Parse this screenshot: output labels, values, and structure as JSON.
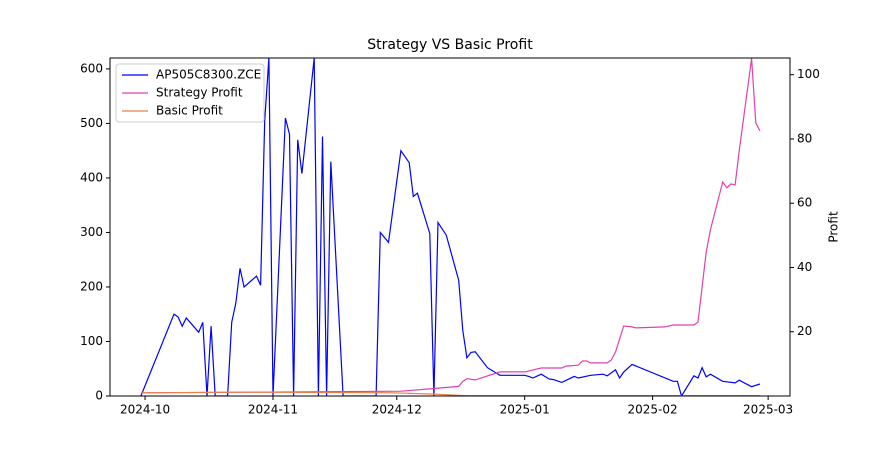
{
  "chart_data": {
    "type": "line",
    "title": "Strategy VS Basic Profit",
    "y2label": "Profit",
    "xlim": [
      -8.5,
      156.3
    ],
    "xticks": [
      {
        "value": 0,
        "label": "2024-10"
      },
      {
        "value": 31,
        "label": "2024-11"
      },
      {
        "value": 61,
        "label": "2024-12"
      },
      {
        "value": 92,
        "label": "2025-01"
      },
      {
        "value": 123,
        "label": "2025-02"
      },
      {
        "value": 151,
        "label": "2025-03"
      }
    ],
    "ylim": [
      0,
      620
    ],
    "yticks": [
      0,
      100,
      200,
      300,
      400,
      500,
      600
    ],
    "y2lim": [
      0,
      105.2
    ],
    "y2ticks": [
      20,
      40,
      60,
      80,
      100
    ],
    "legend": "upper left",
    "series": [
      {
        "name": "AP505C8300.ZCE",
        "color": "#0000ff",
        "axis": "y",
        "x": [
          -1,
          7,
          8,
          9,
          10,
          13,
          14,
          15,
          16,
          17,
          20,
          21,
          22,
          23,
          24,
          27,
          28,
          29,
          30,
          31,
          34,
          35,
          36,
          37,
          38,
          41,
          42,
          43,
          44,
          45,
          48,
          56,
          57,
          59,
          62,
          64,
          65,
          66,
          69,
          70,
          71,
          73,
          76,
          77,
          78,
          79,
          80,
          83,
          86,
          89,
          92,
          93,
          94,
          96,
          98,
          99,
          101,
          104,
          105,
          108,
          111,
          112,
          114,
          115,
          116,
          118,
          128,
          129,
          130,
          133,
          134,
          135,
          136,
          137,
          140,
          143,
          144,
          147,
          149
        ],
        "values": [
          0,
          150,
          145,
          128,
          143,
          117,
          135,
          0,
          128,
          0,
          0,
          135,
          170,
          234,
          200,
          220,
          203,
          505,
          620,
          0,
          510,
          480,
          0,
          470,
          408,
          620,
          0,
          476,
          0,
          430,
          0,
          0,
          300,
          282,
          450,
          428,
          366,
          372,
          298,
          0,
          318,
          295,
          212,
          120,
          70,
          80,
          81,
          52,
          38,
          38,
          38,
          36,
          33,
          40,
          31,
          30,
          25,
          36,
          33,
          38,
          40,
          37,
          48,
          33,
          44,
          58,
          27,
          27,
          0,
          37,
          33,
          52,
          35,
          40,
          27,
          24,
          29,
          17,
          22
        ]
      },
      {
        "name": "Strategy Profit",
        "color": "#e040b0",
        "axis": "y2",
        "x": [
          -1,
          30,
          62,
          69,
          76,
          77,
          78,
          80,
          86,
          92,
          96,
          101,
          102,
          105,
          106,
          107,
          108,
          112,
          113,
          114,
          116,
          118,
          119,
          126,
          128,
          133,
          134,
          136,
          137,
          140,
          141,
          142,
          143,
          144,
          147,
          148,
          149
        ],
        "values": [
          1,
          1.2,
          1.5,
          2.2,
          3,
          4.5,
          5.4,
          5,
          7.5,
          7.5,
          8.7,
          8.7,
          9.3,
          9.6,
          10.9,
          10.9,
          10.3,
          10.3,
          11.2,
          13.7,
          21.8,
          21.5,
          21.2,
          21.5,
          22.1,
          22.1,
          23,
          44.8,
          51.7,
          66.6,
          64.8,
          66,
          65.7,
          76.3,
          105,
          85,
          82.5
        ]
      },
      {
        "name": "Basic Profit",
        "color": "#e8804a",
        "axis": "y2",
        "x": [
          -1,
          24,
          60,
          70,
          78,
          149
        ],
        "values": [
          1,
          1.2,
          1,
          0.6,
          0.1,
          0.1
        ]
      }
    ]
  }
}
